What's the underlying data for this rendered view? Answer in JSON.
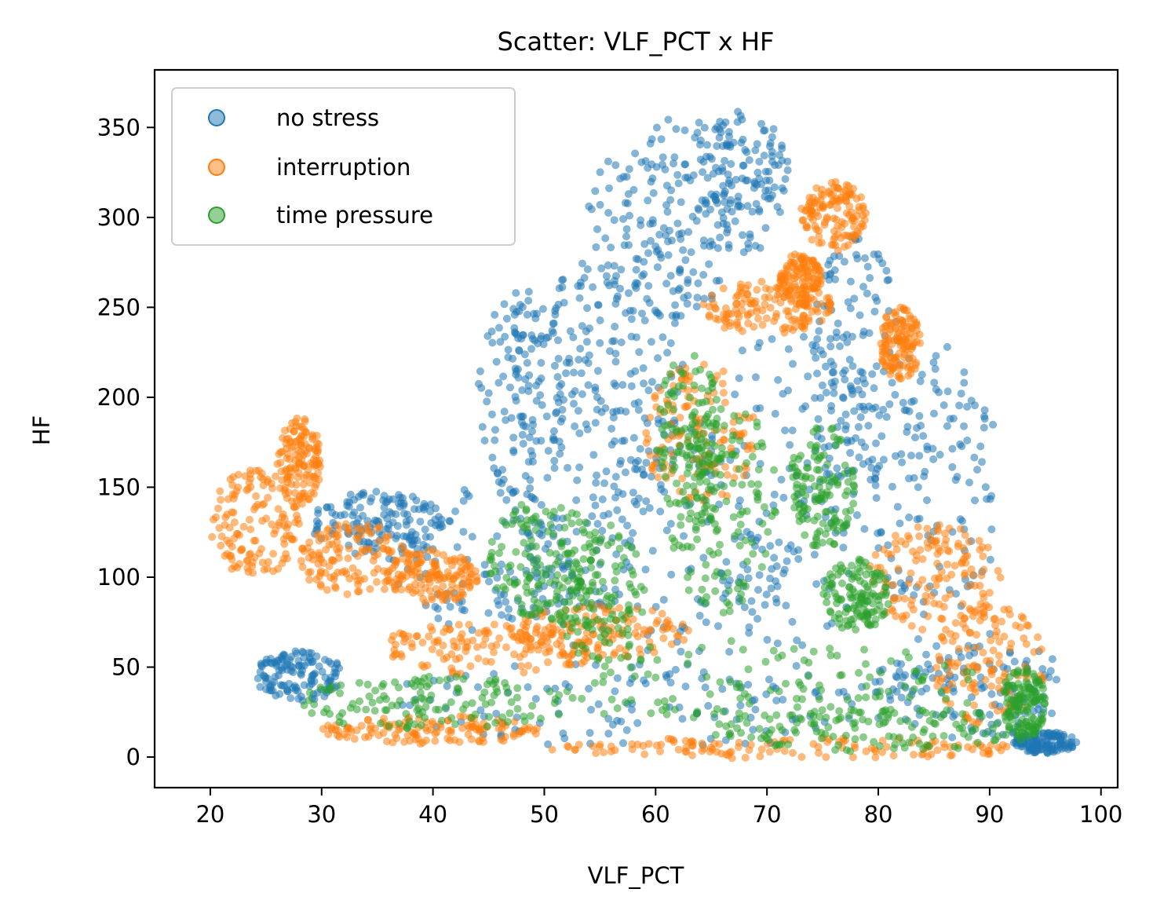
{
  "chart_data": {
    "type": "scatter",
    "title": "Scatter: VLF_PCT x HF",
    "xlabel": "VLF_PCT",
    "ylabel": "HF",
    "xlim": [
      15,
      101.5
    ],
    "ylim": [
      -17,
      382
    ],
    "x_ticks": [
      20,
      30,
      40,
      50,
      60,
      70,
      80,
      90,
      100
    ],
    "y_ticks": [
      0,
      50,
      100,
      150,
      200,
      250,
      300,
      350
    ],
    "grid": false,
    "legend_position": "upper-left",
    "series": [
      {
        "name": "no stress",
        "color": "#1f77b4",
        "clusters": [
          {
            "cx": 28,
            "cy": 45,
            "rx": 4,
            "ry": 14
          },
          {
            "cx": 35,
            "cy": 130,
            "rx": 6,
            "ry": 18
          },
          {
            "cx": 45,
            "cy": 110,
            "rx": 9,
            "ry": 40
          },
          {
            "cx": 48,
            "cy": 200,
            "rx": 4,
            "ry": 60
          },
          {
            "cx": 53,
            "cy": 180,
            "rx": 6,
            "ry": 120
          },
          {
            "cx": 58,
            "cy": 240,
            "rx": 5,
            "ry": 110
          },
          {
            "cx": 62,
            "cy": 300,
            "rx": 5,
            "ry": 60
          },
          {
            "cx": 68,
            "cy": 320,
            "rx": 4,
            "ry": 40
          },
          {
            "cx": 62,
            "cy": 120,
            "rx": 10,
            "ry": 70
          },
          {
            "cx": 72,
            "cy": 150,
            "rx": 8,
            "ry": 90
          },
          {
            "cx": 78,
            "cy": 220,
            "rx": 4,
            "ry": 70
          },
          {
            "cx": 85,
            "cy": 150,
            "rx": 6,
            "ry": 80
          },
          {
            "cx": 60,
            "cy": 30,
            "rx": 25,
            "ry": 25
          },
          {
            "cx": 88,
            "cy": 40,
            "rx": 9,
            "ry": 30
          },
          {
            "cx": 95,
            "cy": 8,
            "rx": 3,
            "ry": 6
          }
        ]
      },
      {
        "name": "interruption",
        "color": "#ff7f0e",
        "clusters": [
          {
            "cx": 24,
            "cy": 130,
            "rx": 4,
            "ry": 30
          },
          {
            "cx": 28,
            "cy": 165,
            "rx": 2,
            "ry": 25
          },
          {
            "cx": 33,
            "cy": 110,
            "rx": 5,
            "ry": 20
          },
          {
            "cx": 40,
            "cy": 100,
            "rx": 4,
            "ry": 15
          },
          {
            "cx": 45,
            "cy": 60,
            "rx": 10,
            "ry": 15
          },
          {
            "cx": 55,
            "cy": 70,
            "rx": 8,
            "ry": 15
          },
          {
            "cx": 40,
            "cy": 15,
            "rx": 10,
            "ry": 8
          },
          {
            "cx": 70,
            "cy": 250,
            "rx": 6,
            "ry": 15
          },
          {
            "cx": 73,
            "cy": 265,
            "rx": 2,
            "ry": 15
          },
          {
            "cx": 76,
            "cy": 300,
            "rx": 3,
            "ry": 20
          },
          {
            "cx": 82,
            "cy": 230,
            "rx": 2,
            "ry": 20
          },
          {
            "cx": 64,
            "cy": 180,
            "rx": 5,
            "ry": 40
          },
          {
            "cx": 85,
            "cy": 100,
            "rx": 6,
            "ry": 30
          },
          {
            "cx": 90,
            "cy": 50,
            "rx": 5,
            "ry": 35
          },
          {
            "cx": 72,
            "cy": 5,
            "rx": 22,
            "ry": 6
          }
        ]
      },
      {
        "name": "time pressure",
        "color": "#2ca02c",
        "clusters": [
          {
            "cx": 40,
            "cy": 30,
            "rx": 13,
            "ry": 15
          },
          {
            "cx": 50,
            "cy": 110,
            "rx": 5,
            "ry": 35
          },
          {
            "cx": 55,
            "cy": 90,
            "rx": 4,
            "ry": 40
          },
          {
            "cx": 63,
            "cy": 170,
            "rx": 3,
            "ry": 55
          },
          {
            "cx": 66,
            "cy": 140,
            "rx": 5,
            "ry": 60
          },
          {
            "cx": 75,
            "cy": 150,
            "rx": 3,
            "ry": 35
          },
          {
            "cx": 78,
            "cy": 90,
            "rx": 3,
            "ry": 20
          },
          {
            "cx": 70,
            "cy": 40,
            "rx": 20,
            "ry": 25
          },
          {
            "cx": 80,
            "cy": 15,
            "rx": 15,
            "ry": 12
          },
          {
            "cx": 93,
            "cy": 30,
            "rx": 2,
            "ry": 20
          }
        ]
      }
    ]
  }
}
